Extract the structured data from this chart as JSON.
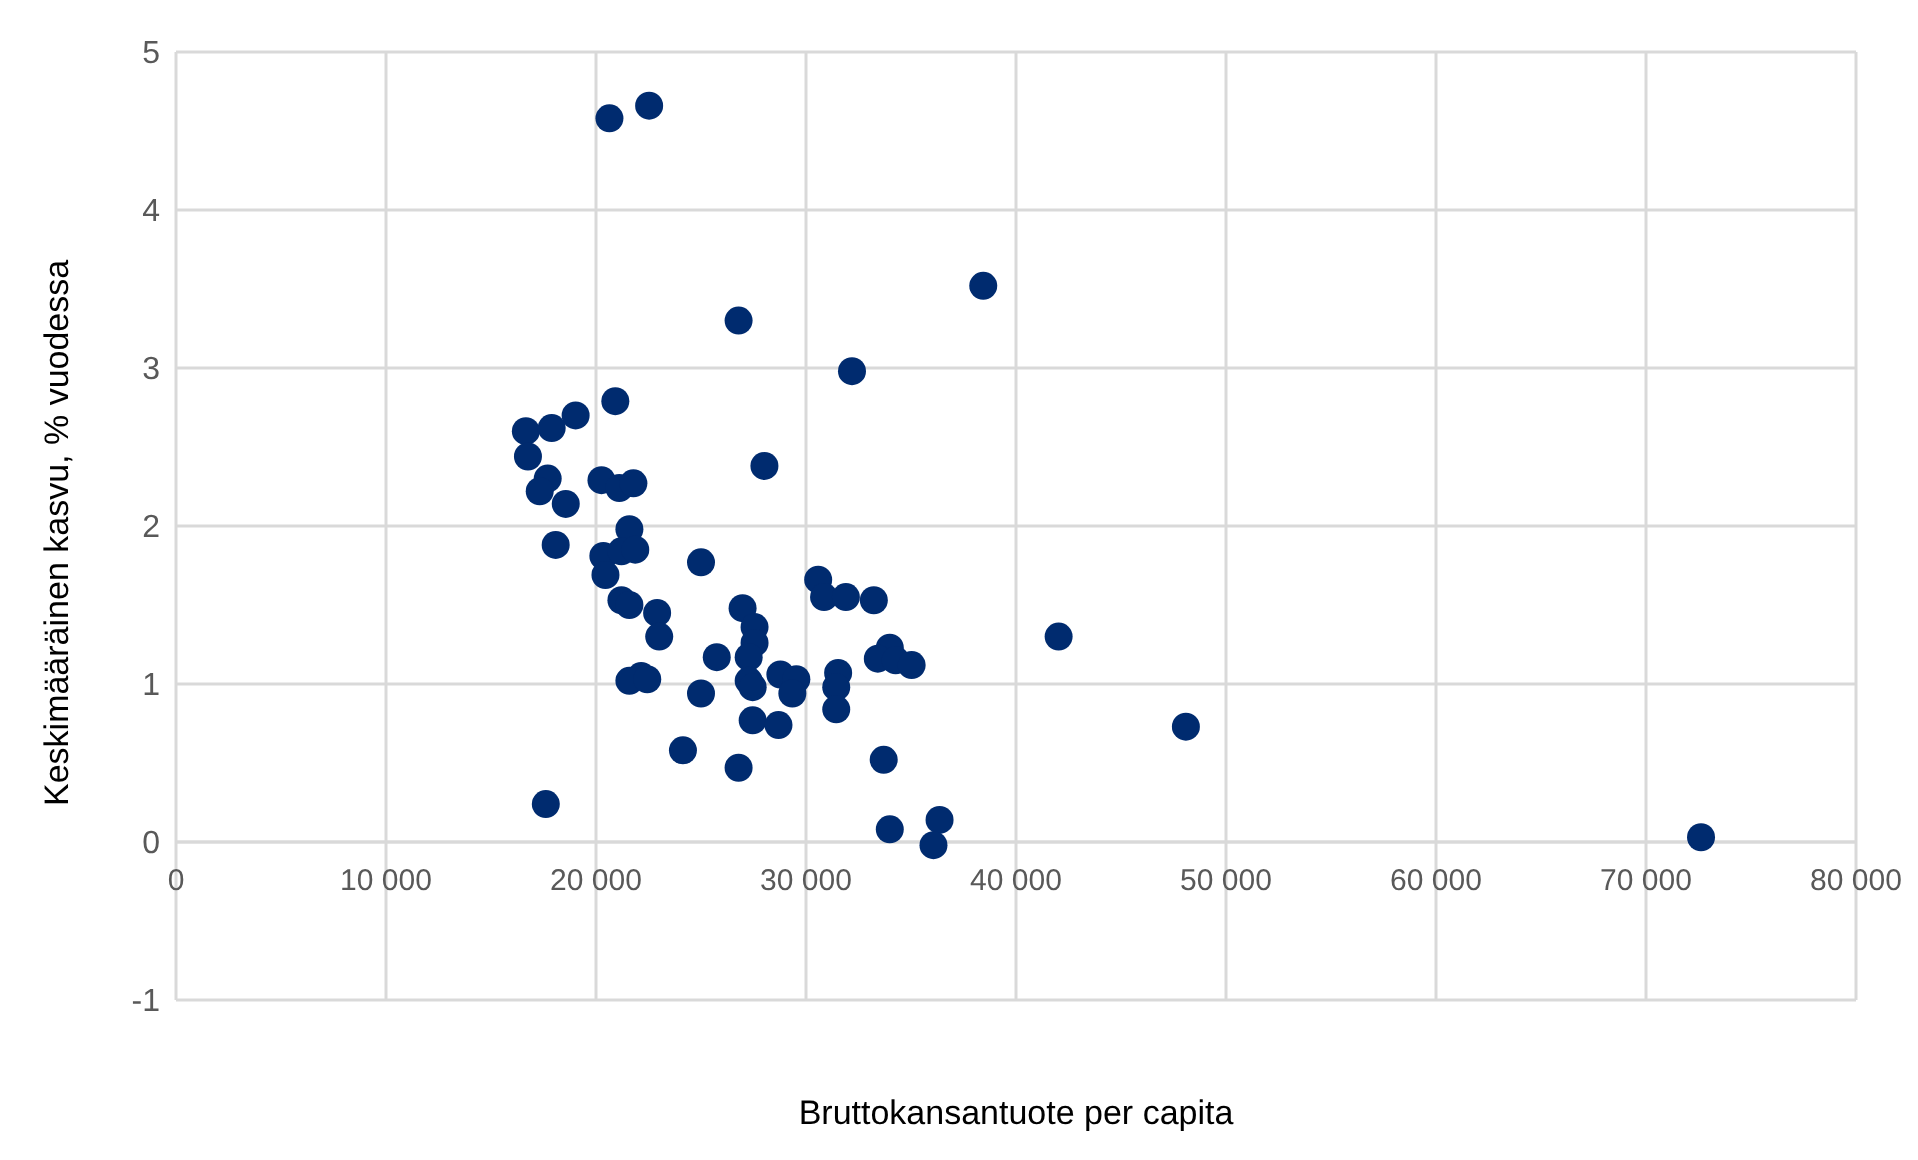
{
  "chart_data": {
    "type": "scatter",
    "xlabel": "Bruttokansantuote per capita",
    "ylabel": "Keskimääräinen kasvu, % vuodessa",
    "color": "#002b6f",
    "marker": "circle",
    "grid": true,
    "x": [
      20640,
      22530,
      38440,
      26790,
      32190,
      20920,
      19030,
      16660,
      17890,
      16760,
      28020,
      17700,
      17320,
      20260,
      21110,
      21780,
      18560,
      21590,
      18080,
      20350,
      21210,
      21870,
      25000,
      20450,
      21210,
      21590,
      22910,
      23010,
      30580,
      30860,
      31900,
      33230,
      42030,
      26980,
      27550,
      27550,
      25750,
      27270,
      33990,
      33420,
      34270,
      35030,
      31530,
      28780,
      29540,
      27270,
      27460,
      29350,
      31440,
      22150,
      21590,
      22440,
      25000,
      31440,
      27460,
      28690,
      48090,
      24140,
      26790,
      33700,
      17610,
      33990,
      36360,
      36070,
      72620
    ],
    "values": [
      4.58,
      4.66,
      3.52,
      3.3,
      2.98,
      2.79,
      2.7,
      2.6,
      2.62,
      2.44,
      2.38,
      2.3,
      2.22,
      2.29,
      2.24,
      2.27,
      2.14,
      1.98,
      1.88,
      1.81,
      1.84,
      1.85,
      1.77,
      1.69,
      1.53,
      1.5,
      1.45,
      1.3,
      1.66,
      1.55,
      1.55,
      1.53,
      1.3,
      1.48,
      1.36,
      1.26,
      1.17,
      1.17,
      1.23,
      1.16,
      1.15,
      1.12,
      1.07,
      1.06,
      1.03,
      1.02,
      0.98,
      0.94,
      0.98,
      1.05,
      1.02,
      1.03,
      0.94,
      0.84,
      0.77,
      0.74,
      0.73,
      0.58,
      0.47,
      0.52,
      0.24,
      0.08,
      0.14,
      -0.02,
      0.03
    ],
    "xlim": [
      0,
      80000
    ],
    "xticks": [
      0,
      {
        "value": 10000,
        "label": "10 000"
      },
      {
        "value": 20000,
        "label": "20 000"
      },
      {
        "value": 30000,
        "label": "30 000"
      },
      {
        "value": 40000,
        "label": "40 000"
      },
      {
        "value": 50000,
        "label": "50 000"
      },
      {
        "value": 60000,
        "label": "60 000"
      },
      {
        "value": 70000,
        "label": "70 000"
      },
      {
        "value": 80000,
        "label": "80 000"
      }
    ],
    "ylim": [
      -1,
      5
    ],
    "yticks": [
      -1,
      0,
      1,
      2,
      3,
      4,
      5
    ]
  }
}
